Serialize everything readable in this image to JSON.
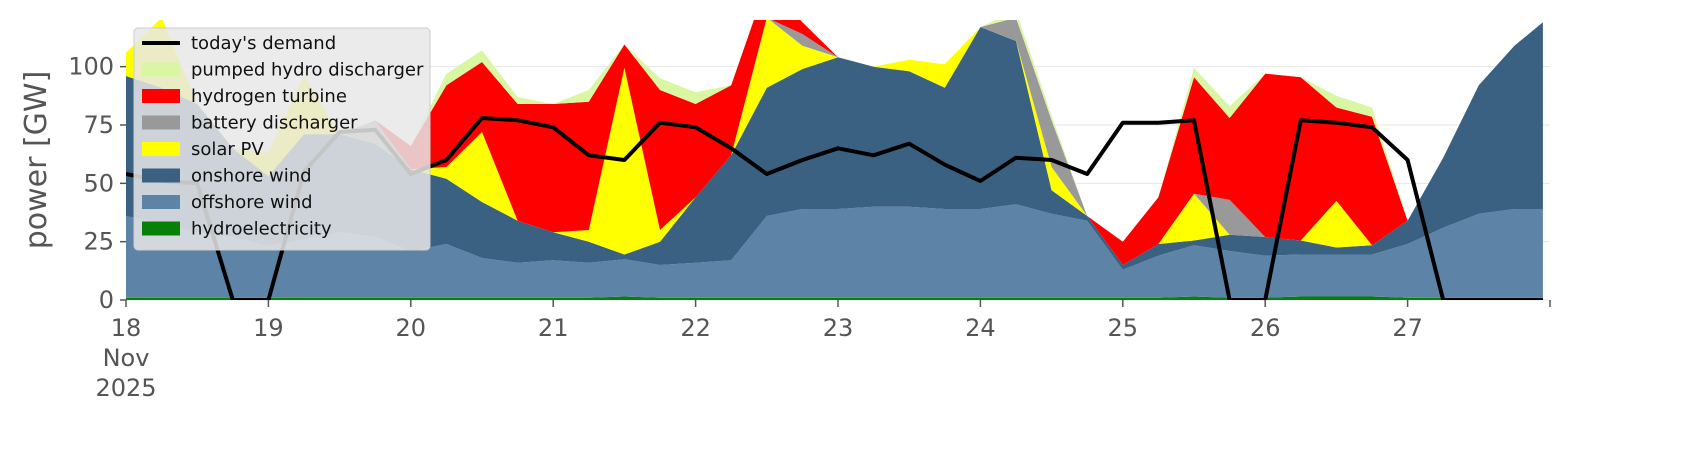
{
  "chart_data": {
    "type": "area",
    "ylabel": "power [GW]",
    "xlim": [
      0,
      10
    ],
    "ylim": [
      0,
      120
    ],
    "yticks": [
      0,
      25,
      50,
      75,
      100
    ],
    "xticks": [
      {
        "day": 0,
        "lines": [
          "18",
          "Nov",
          "2025"
        ]
      },
      {
        "day": 1,
        "lines": [
          "19"
        ]
      },
      {
        "day": 2,
        "lines": [
          "20"
        ]
      },
      {
        "day": 3,
        "lines": [
          "21"
        ]
      },
      {
        "day": 4,
        "lines": [
          "22"
        ]
      },
      {
        "day": 5,
        "lines": [
          "23"
        ]
      },
      {
        "day": 6,
        "lines": [
          "24"
        ]
      },
      {
        "day": 7,
        "lines": [
          "25"
        ]
      },
      {
        "day": 8,
        "lines": [
          "26"
        ]
      },
      {
        "day": 9,
        "lines": [
          "27"
        ]
      }
    ],
    "grid": true,
    "legend_position": "top-left",
    "legend": [
      {
        "label": "today's demand",
        "color": "#000000",
        "kind": "line"
      },
      {
        "label": "pumped hydro discharger",
        "color": "#d9f7a3",
        "kind": "patch"
      },
      {
        "label": "hydrogen turbine",
        "color": "#ff0000",
        "kind": "patch"
      },
      {
        "label": "battery discharger",
        "color": "#999999",
        "kind": "patch"
      },
      {
        "label": "solar PV",
        "color": "#ffff00",
        "kind": "patch"
      },
      {
        "label": "onshore wind",
        "color": "#3b6182",
        "kind": "patch"
      },
      {
        "label": "offshore wind",
        "color": "#5d83a7",
        "kind": "patch"
      },
      {
        "label": "hydroelectricity",
        "color": "#088008",
        "kind": "patch"
      }
    ],
    "x": [
      0,
      0.25,
      0.5,
      0.75,
      1,
      1.25,
      1.5,
      1.75,
      2,
      2.25,
      2.5,
      2.75,
      3,
      3.25,
      3.5,
      3.75,
      4,
      4.25,
      4.5,
      4.75,
      5,
      5.25,
      5.5,
      5.75,
      6,
      6.25,
      6.5,
      6.75,
      7,
      7.25,
      7.5,
      7.75,
      8,
      8.25,
      8.5,
      8.75,
      9,
      9.25,
      9.5,
      9.75,
      9.95
    ],
    "stack_order": [
      "hydroelectricity",
      "offshore wind",
      "onshore wind",
      "solar PV",
      "battery discharger",
      "hydrogen turbine",
      "pumped hydro discharger"
    ],
    "series": [
      {
        "name": "hydroelectricity",
        "color": "#088008",
        "values": [
          1,
          1,
          1,
          1,
          1,
          1,
          1,
          1,
          1,
          1,
          1,
          1,
          1,
          1,
          1.5,
          1,
          1,
          1,
          1,
          1,
          1,
          1,
          1,
          1,
          1,
          1,
          1,
          1,
          1,
          1,
          1.5,
          1,
          1,
          1.5,
          1.5,
          1.5,
          1,
          1,
          1,
          1,
          1
        ]
      },
      {
        "name": "offshore wind",
        "color": "#5d83a7",
        "values": [
          35,
          32,
          28,
          26,
          22,
          25,
          28,
          26,
          20,
          23,
          17,
          15,
          16,
          15,
          16,
          14,
          15,
          16,
          35,
          38,
          38,
          39,
          39,
          38,
          38,
          40,
          36,
          33,
          12,
          18,
          22,
          20,
          18,
          18,
          18,
          18,
          23,
          30,
          36,
          38,
          38
        ]
      },
      {
        "name": "onshore wind",
        "color": "#3b6182",
        "values": [
          60,
          58,
          55,
          38,
          30,
          45,
          42,
          40,
          35,
          28,
          24,
          18,
          12,
          9,
          2,
          10,
          28,
          45,
          55,
          60,
          65,
          60,
          58,
          52,
          78,
          70,
          10,
          2,
          2,
          5,
          2,
          7,
          8,
          6,
          3,
          4,
          10,
          30,
          55,
          70,
          80
        ]
      },
      {
        "name": "solar PV",
        "color": "#ffff00",
        "values": [
          10,
          30,
          0,
          0,
          10,
          25,
          0,
          0,
          0,
          5,
          30,
          0,
          0,
          5,
          80,
          5,
          0,
          0,
          30,
          10,
          0,
          0,
          5,
          10,
          0,
          0,
          10,
          0,
          0,
          0,
          20,
          0,
          0,
          0,
          20,
          0,
          0,
          0,
          0,
          0,
          0
        ]
      },
      {
        "name": "battery discharger",
        "color": "#999999",
        "values": [
          0,
          0,
          0,
          0,
          0,
          0,
          0,
          10,
          0,
          0,
          0,
          0,
          0,
          0,
          0,
          0,
          0,
          0,
          0,
          5,
          0,
          0,
          0,
          0,
          0,
          10,
          20,
          0,
          0,
          0,
          0,
          15,
          0,
          0,
          0,
          0,
          0,
          0,
          0,
          0,
          0
        ]
      },
      {
        "name": "hydrogen turbine",
        "color": "#ff0000",
        "values": [
          0,
          0,
          0,
          0,
          0,
          0,
          0,
          0,
          10,
          35,
          30,
          50,
          55,
          55,
          10,
          60,
          40,
          30,
          15,
          5,
          0,
          0,
          0,
          0,
          0,
          0,
          0,
          0,
          10,
          20,
          50,
          35,
          70,
          70,
          40,
          55,
          0,
          0,
          0,
          0,
          0
        ]
      },
      {
        "name": "pumped hydro discharger",
        "color": "#d9f7a3",
        "values": [
          0,
          0,
          0,
          0,
          0,
          0,
          0,
          0,
          0,
          5,
          5,
          3,
          0,
          5,
          0,
          5,
          5,
          0,
          0,
          0,
          0,
          0,
          0,
          0,
          0,
          3,
          2,
          0,
          0,
          0,
          4,
          5,
          0,
          0,
          5,
          4,
          0,
          0,
          0,
          0,
          0
        ]
      },
      {
        "name": "today's demand",
        "color": "#000000",
        "kind": "line",
        "values": [
          54,
          51,
          50,
          0,
          0,
          55,
          72,
          73,
          54,
          60,
          78,
          77,
          74,
          62,
          60,
          76,
          74,
          65,
          54,
          60,
          65,
          62,
          67,
          58,
          51,
          61,
          60,
          54,
          76,
          76,
          77,
          0,
          0,
          77,
          76,
          74,
          60,
          0,
          0,
          0,
          0
        ]
      }
    ]
  }
}
